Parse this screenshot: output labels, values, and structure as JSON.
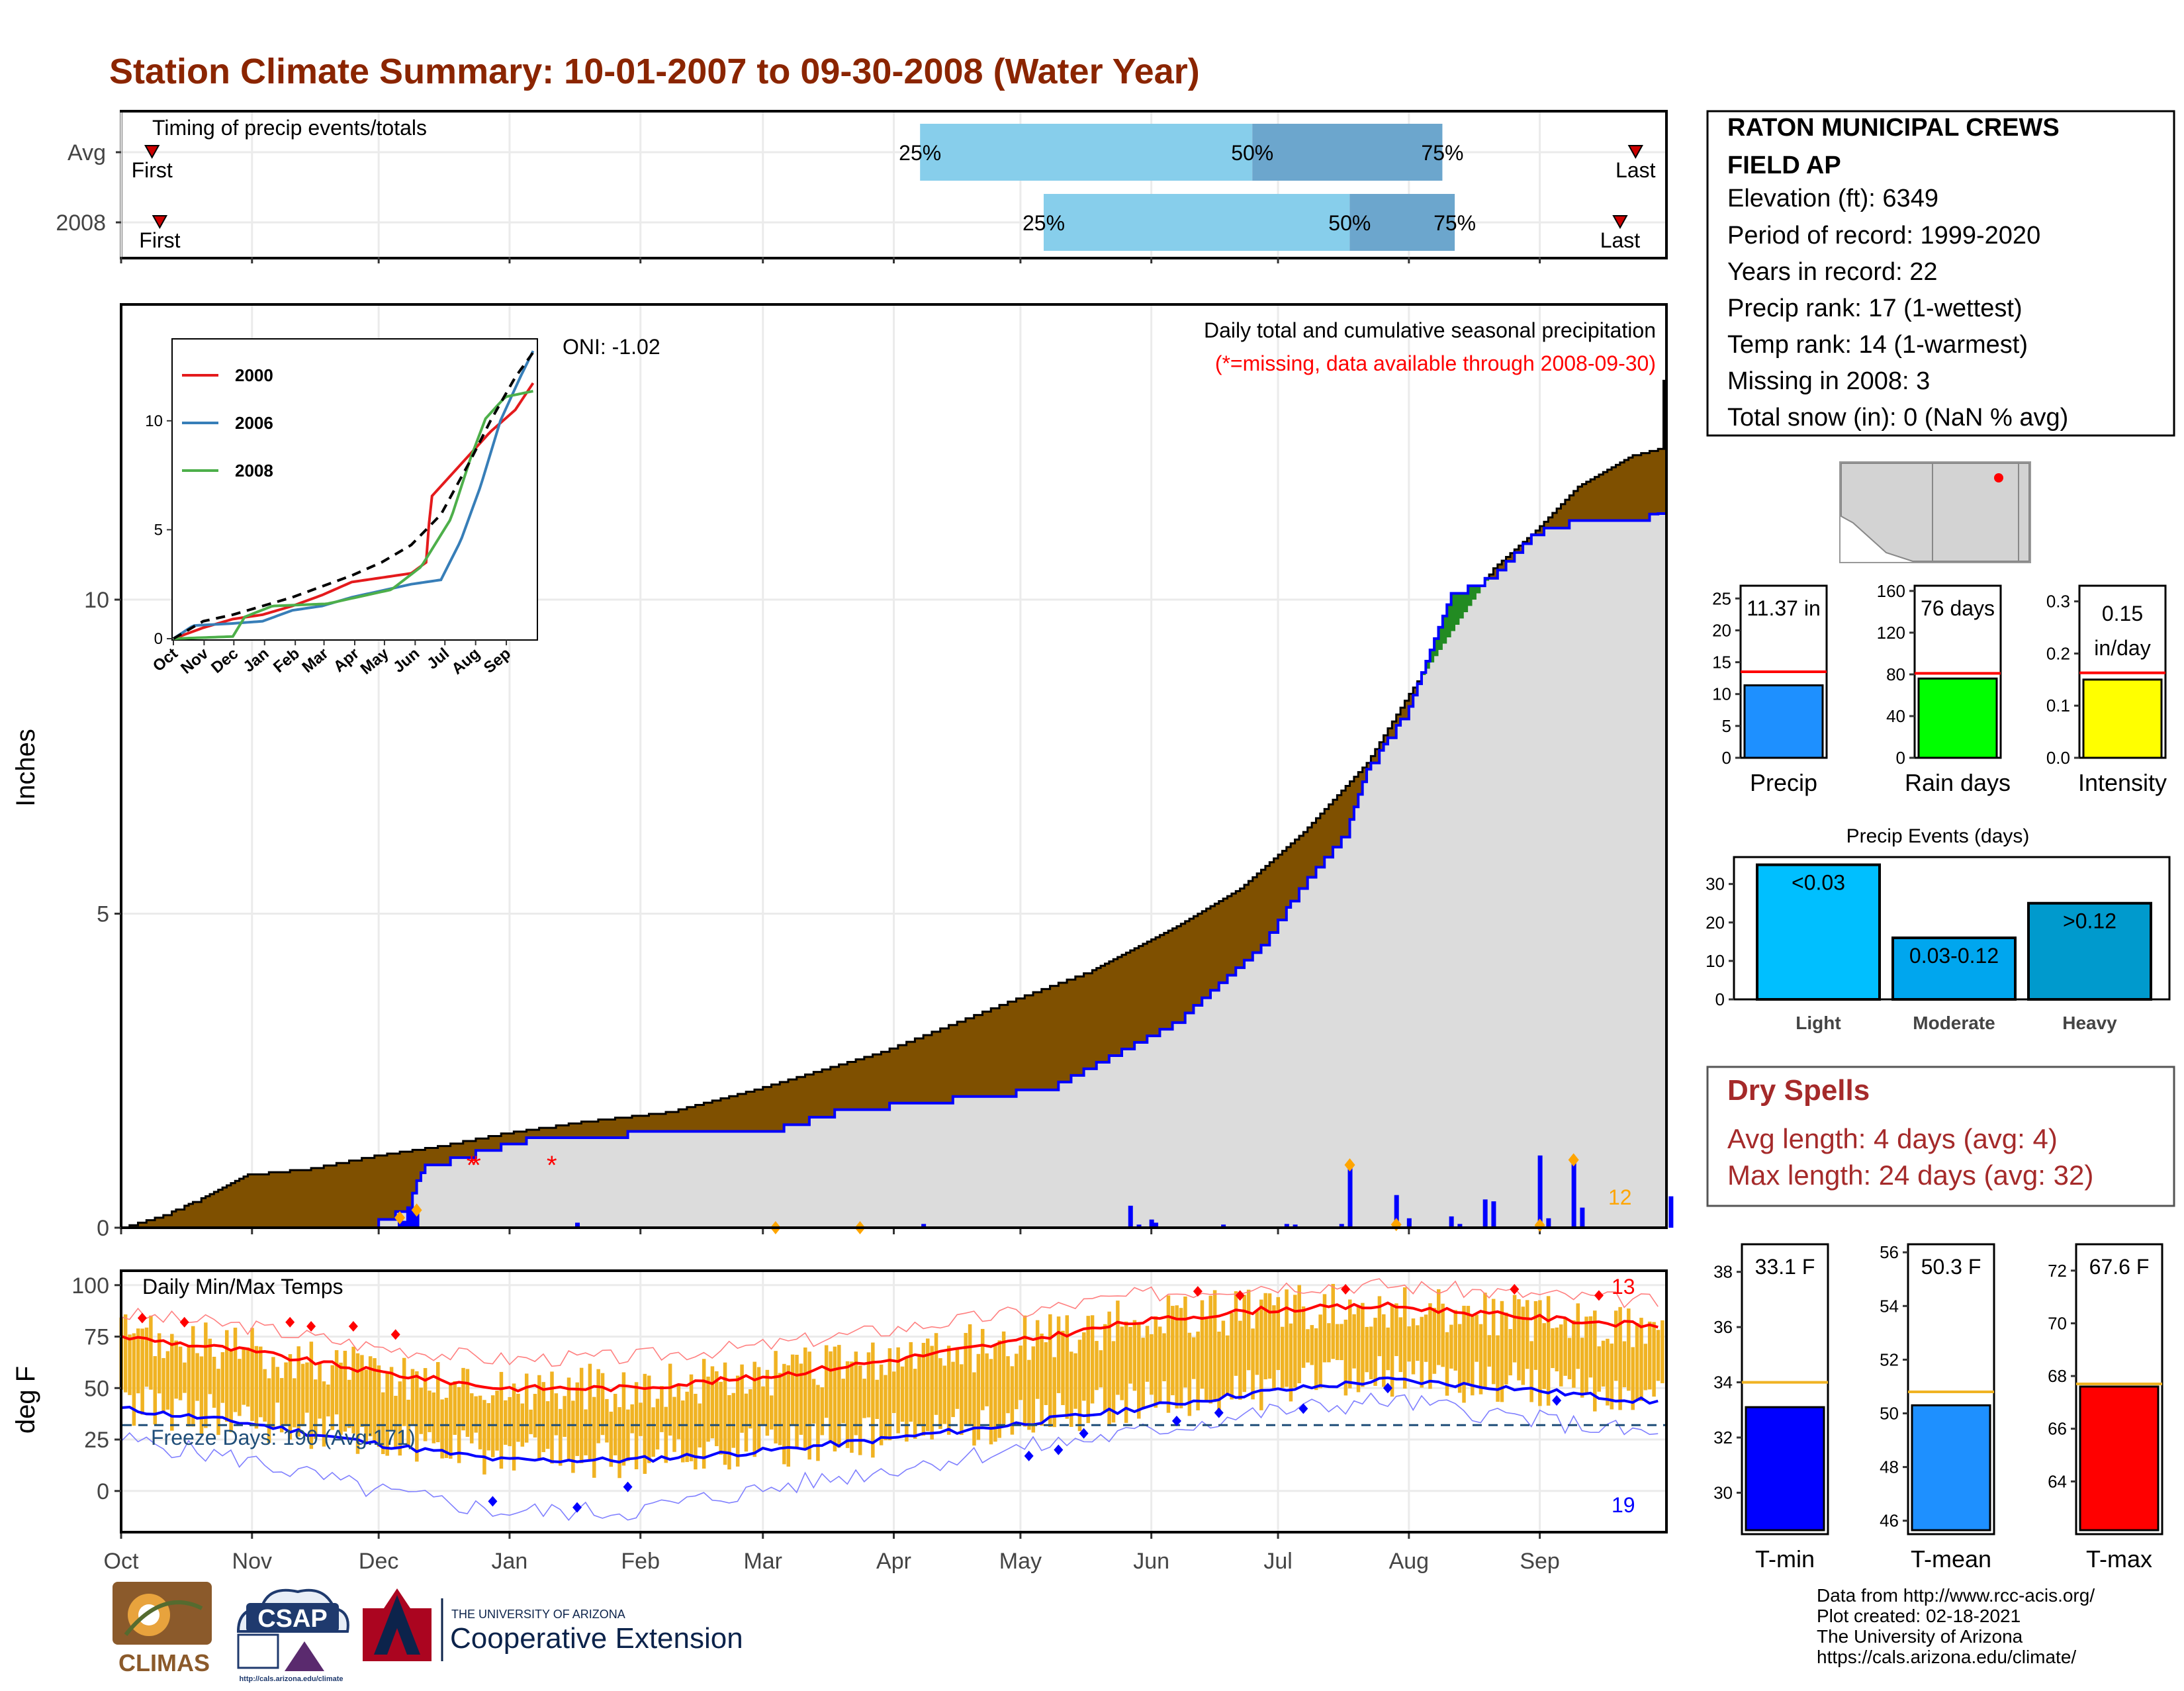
{
  "title": "Station Climate Summary: 10-01-2007 to 09-30-2008 (Water Year)",
  "colors": {
    "title": "#8B2500",
    "brown": "#7F5000",
    "gray_fill": "#DCDCDC",
    "blue_line": "#0000FF",
    "orange": "#FFA500",
    "bar_blue": "#1E90FF",
    "bar_green": "#00FF00",
    "bar_yellow": "#FFFF00",
    "light": "#00BFFF",
    "moderate": "#00A6EE",
    "heavy": "#009ACD",
    "dry_text": "#A52A2A"
  },
  "timing": {
    "label": "Timing of precip events/totals",
    "rows": [
      {
        "name": "Avg",
        "first_label": "First",
        "last_label": "Last",
        "first": 0.02,
        "last": 0.98,
        "p25": 0.517,
        "p50": 0.732,
        "p75": 0.855,
        "l25": "25%",
        "l50": "50%",
        "l75": "75%"
      },
      {
        "name": "2008",
        "first_label": "First",
        "last_label": "Last",
        "first": 0.025,
        "last": 0.97,
        "p25": 0.597,
        "p50": 0.795,
        "p75": 0.863,
        "l25": "25%",
        "l50": "50%",
        "l75": "75%"
      }
    ]
  },
  "months": [
    "Oct",
    "Nov",
    "Dec",
    "Jan",
    "Feb",
    "Mar",
    "Apr",
    "May",
    "Jun",
    "Jul",
    "Aug",
    "Sep"
  ],
  "month_start_day": [
    0,
    31,
    61,
    92,
    123,
    152,
    183,
    213,
    244,
    274,
    305,
    336
  ],
  "precip_panel": {
    "ylabel": "Inches",
    "yticks": [
      0,
      5,
      10
    ],
    "ymax": 14.7,
    "caption": "Daily total and cumulative seasonal precipitation",
    "missing_note": "(*=missing, data available through 2008-09-30)",
    "oni": "ONI: -1.02",
    "count_label": "12",
    "cumulative_avg": [
      [
        0,
        0
      ],
      [
        10,
        0.2
      ],
      [
        20,
        0.5
      ],
      [
        30,
        0.85
      ],
      [
        45,
        0.95
      ],
      [
        60,
        1.15
      ],
      [
        75,
        1.3
      ],
      [
        90,
        1.5
      ],
      [
        110,
        1.7
      ],
      [
        130,
        1.85
      ],
      [
        150,
        2.2
      ],
      [
        165,
        2.5
      ],
      [
        180,
        2.8
      ],
      [
        195,
        3.2
      ],
      [
        210,
        3.6
      ],
      [
        230,
        4.1
      ],
      [
        250,
        4.8
      ],
      [
        265,
        5.4
      ],
      [
        280,
        6.3
      ],
      [
        295,
        7.4
      ],
      [
        305,
        8.5
      ],
      [
        315,
        9.5
      ],
      [
        325,
        10.5
      ],
      [
        335,
        11.1
      ],
      [
        345,
        11.8
      ],
      [
        358,
        12.3
      ],
      [
        364,
        12.4
      ]
    ],
    "cumulative_2008": [
      [
        0,
        0
      ],
      [
        40,
        0.05
      ],
      [
        60,
        0.1
      ],
      [
        68,
        0.35
      ],
      [
        70,
        0.75
      ],
      [
        72,
        1.0
      ],
      [
        85,
        1.25
      ],
      [
        100,
        1.5
      ],
      [
        130,
        1.55
      ],
      [
        155,
        1.6
      ],
      [
        170,
        1.9
      ],
      [
        220,
        2.25
      ],
      [
        230,
        2.6
      ],
      [
        250,
        3.3
      ],
      [
        270,
        4.5
      ],
      [
        280,
        5.5
      ],
      [
        290,
        6.3
      ],
      [
        295,
        7.3
      ],
      [
        305,
        8.3
      ],
      [
        315,
        10.1
      ],
      [
        325,
        10.4
      ],
      [
        335,
        11.1
      ],
      [
        345,
        11.3
      ],
      [
        364,
        11.37
      ]
    ],
    "daily_bars": [
      [
        66,
        0.16
      ],
      [
        67,
        0.11
      ],
      [
        68,
        0.34
      ],
      [
        69,
        0.25
      ],
      [
        70,
        0.28
      ],
      [
        108,
        0.08
      ],
      [
        175,
        0.05
      ],
      [
        190,
        0.06
      ],
      [
        239,
        0.35
      ],
      [
        241,
        0.05
      ],
      [
        244,
        0.13
      ],
      [
        245,
        0.08
      ],
      [
        261,
        0.05
      ],
      [
        276,
        0.06
      ],
      [
        278,
        0.05
      ],
      [
        289,
        0.06
      ],
      [
        291,
        1.0
      ],
      [
        302,
        0.52
      ],
      [
        305,
        0.15
      ],
      [
        315,
        0.18
      ],
      [
        317,
        0.06
      ],
      [
        323,
        0.45
      ],
      [
        325,
        0.42
      ],
      [
        336,
        1.15
      ],
      [
        338,
        0.15
      ],
      [
        344,
        1.08
      ],
      [
        346,
        0.32
      ],
      [
        367,
        0.5
      ]
    ],
    "missing_days": [
      [
        83,
        1.0
      ],
      [
        84,
        1.0
      ],
      [
        102,
        1.0
      ]
    ]
  },
  "inset": {
    "series": [
      {
        "name": "2000",
        "color": "#E41A1C",
        "points": [
          [
            0,
            0
          ],
          [
            30,
            0.5
          ],
          [
            60,
            0.9
          ],
          [
            90,
            1.1
          ],
          [
            120,
            1.5
          ],
          [
            150,
            2.0
          ],
          [
            180,
            2.6
          ],
          [
            210,
            2.8
          ],
          [
            240,
            3.0
          ],
          [
            255,
            3.5
          ],
          [
            260,
            6.5
          ],
          [
            280,
            7.5
          ],
          [
            300,
            8.5
          ],
          [
            320,
            9.5
          ],
          [
            345,
            10.5
          ],
          [
            364,
            11.8
          ]
        ]
      },
      {
        "name": "2006",
        "color": "#377EB8",
        "points": [
          [
            0,
            0
          ],
          [
            20,
            0.6
          ],
          [
            60,
            0.7
          ],
          [
            90,
            0.8
          ],
          [
            120,
            1.3
          ],
          [
            150,
            1.5
          ],
          [
            180,
            1.9
          ],
          [
            210,
            2.2
          ],
          [
            240,
            2.5
          ],
          [
            270,
            2.7
          ],
          [
            290,
            4.5
          ],
          [
            310,
            7.0
          ],
          [
            330,
            10.0
          ],
          [
            350,
            12.0
          ],
          [
            364,
            13.3
          ]
        ]
      },
      {
        "name": "2008",
        "color": "#4DAF4A",
        "points": [
          [
            0,
            0
          ],
          [
            60,
            0.1
          ],
          [
            72,
            1.0
          ],
          [
            100,
            1.5
          ],
          [
            155,
            1.6
          ],
          [
            220,
            2.25
          ],
          [
            250,
            3.3
          ],
          [
            280,
            5.5
          ],
          [
            300,
            8.3
          ],
          [
            315,
            10.1
          ],
          [
            335,
            11.1
          ],
          [
            364,
            11.37
          ]
        ]
      }
    ],
    "avg": [
      [
        0,
        0
      ],
      [
        30,
        0.8
      ],
      [
        60,
        1.1
      ],
      [
        90,
        1.5
      ],
      [
        120,
        1.9
      ],
      [
        150,
        2.4
      ],
      [
        180,
        2.9
      ],
      [
        210,
        3.5
      ],
      [
        240,
        4.3
      ],
      [
        270,
        5.7
      ],
      [
        300,
        8.2
      ],
      [
        320,
        10.0
      ],
      [
        345,
        12.0
      ],
      [
        364,
        13.2
      ]
    ],
    "yticks": [
      0,
      5,
      10
    ],
    "ymax": 13.7
  },
  "temp_panel": {
    "ylabel": "deg F",
    "title": "Daily Min/Max Temps",
    "yticks": [
      0,
      25,
      50,
      75,
      100
    ],
    "ymin": -20,
    "ymax": 107,
    "freeze_label": "Freeze Days: 190 (Avg:171)",
    "freeze_value": 32,
    "count_high": "13",
    "count_low": "19",
    "avg_max": [
      [
        0,
        75
      ],
      [
        30,
        68
      ],
      [
        60,
        58
      ],
      [
        90,
        50
      ],
      [
        120,
        50
      ],
      [
        150,
        55
      ],
      [
        180,
        63
      ],
      [
        210,
        72
      ],
      [
        240,
        82
      ],
      [
        270,
        88
      ],
      [
        300,
        90
      ],
      [
        330,
        85
      ],
      [
        364,
        80
      ]
    ],
    "avg_min": [
      [
        0,
        40
      ],
      [
        30,
        33
      ],
      [
        60,
        23
      ],
      [
        90,
        15
      ],
      [
        120,
        15
      ],
      [
        150,
        19
      ],
      [
        180,
        25
      ],
      [
        210,
        32
      ],
      [
        240,
        40
      ],
      [
        270,
        48
      ],
      [
        300,
        54
      ],
      [
        330,
        50
      ],
      [
        364,
        43
      ]
    ],
    "rec_max": [
      [
        0,
        86
      ],
      [
        30,
        80
      ],
      [
        60,
        70
      ],
      [
        90,
        64
      ],
      [
        120,
        65
      ],
      [
        150,
        70
      ],
      [
        180,
        78
      ],
      [
        210,
        86
      ],
      [
        240,
        95
      ],
      [
        270,
        100
      ],
      [
        300,
        100
      ],
      [
        330,
        96
      ],
      [
        364,
        92
      ]
    ],
    "rec_min": [
      [
        0,
        25
      ],
      [
        30,
        15
      ],
      [
        60,
        0
      ],
      [
        90,
        -10
      ],
      [
        120,
        -10
      ],
      [
        150,
        0
      ],
      [
        180,
        10
      ],
      [
        210,
        20
      ],
      [
        240,
        28
      ],
      [
        270,
        38
      ],
      [
        300,
        44
      ],
      [
        330,
        36
      ],
      [
        364,
        27
      ]
    ]
  },
  "station": {
    "name_line1": "RATON MUNICIPAL CREWS",
    "name_line2": "FIELD AP",
    "lines": [
      "Elevation (ft): 6349",
      "Period of record: 1999-2020",
      "Years in record: 22",
      "Precip rank: 17 (1-wettest)",
      "Temp rank: 14 (1-warmest)",
      "Missing in 2008: 3",
      "Total snow (in): 0 (NaN % avg)"
    ]
  },
  "summary_bars": [
    {
      "label": "Precip",
      "value_label": "11.37 in",
      "value": 11.37,
      "avg": 13.5,
      "ymax": 27,
      "ticks": [
        0,
        5,
        10,
        15,
        20,
        25
      ],
      "color": "#1E90FF"
    },
    {
      "label": "Rain days",
      "value_label": "76 days",
      "value": 76,
      "avg": 81,
      "ymax": 165,
      "ticks": [
        0,
        40,
        80,
        120,
        160
      ],
      "color": "#00FF00"
    },
    {
      "label": "Intensity",
      "value_label_1": "0.15",
      "value_label_2": "in/day",
      "value": 0.15,
      "avg": 0.163,
      "ymax": 0.33,
      "ticks": [
        0.0,
        0.1,
        0.2,
        0.3
      ],
      "tick_labels": [
        "0.0",
        "0.1",
        "0.2",
        "0.3"
      ],
      "color": "#FFFF00"
    }
  ],
  "precip_events": {
    "title": "Precip Events (days)",
    "categories": [
      "Light",
      "Moderate",
      "Heavy"
    ],
    "bar_labels": [
      "<0.03",
      "0.03-0.12",
      ">0.12"
    ],
    "values": [
      35,
      16,
      25
    ],
    "ymax": 37,
    "yticks": [
      0,
      10,
      20,
      30
    ]
  },
  "dry_spells": {
    "title": "Dry Spells",
    "avg_line": "Avg length: 4 days (avg: 4)",
    "max_line": "Max length: 24 days (avg: 32)"
  },
  "temp_bars": [
    {
      "label": "T-min",
      "value_label": "33.1 F",
      "value": 33.1,
      "avg": 34.0,
      "ymin": 28.5,
      "ymax": 39,
      "ticks": [
        30,
        32,
        34,
        36,
        38
      ],
      "color": "#0000FF"
    },
    {
      "label": "T-mean",
      "value_label": "50.3 F",
      "value": 50.3,
      "avg": 50.8,
      "ymin": 45.5,
      "ymax": 56.3,
      "ticks": [
        46,
        48,
        50,
        52,
        54,
        56
      ],
      "color": "#1E90FF"
    },
    {
      "label": "T-max",
      "value_label": "67.6 F",
      "value": 67.6,
      "avg": 67.7,
      "ymin": 62,
      "ymax": 73,
      "ticks": [
        64,
        66,
        68,
        70,
        72
      ],
      "color": "#FF0000"
    }
  ],
  "footer": {
    "lines": [
      "Data from http://www.rcc-acis.org/",
      "Plot created: 02-18-2021",
      "The University of Arizona",
      "https://cals.arizona.edu/climate/"
    ],
    "logo_climas": "CLIMAS",
    "logo_csap": "CSAP",
    "csap_url": "http://cals.arizona.edu/climate",
    "ua_small": "THE UNIVERSITY OF ARIZONA",
    "ua_big": "Cooperative Extension"
  }
}
